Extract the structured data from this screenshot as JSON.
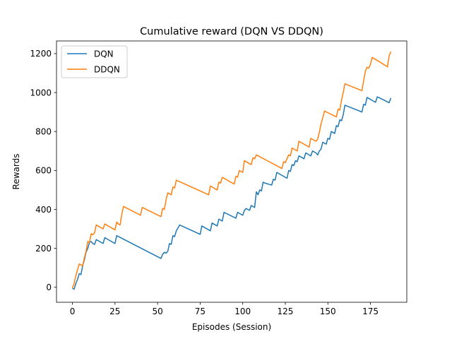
{
  "chart_data": {
    "type": "line",
    "title": "Cumulative reward (DQN VS DDQN)",
    "xlabel": "Episodes (Session)",
    "ylabel": "Rewards",
    "xlim": [
      -9.35,
      196.35
    ],
    "ylim": [
      -77,
      1265
    ],
    "xticks": [
      0,
      25,
      50,
      75,
      100,
      125,
      150,
      175
    ],
    "yticks": [
      0,
      200,
      400,
      600,
      800,
      1000,
      1200
    ],
    "grid": false,
    "legend_position": "top-left",
    "series": [
      {
        "name": "DQN",
        "color": "#1f77b4",
        "points": [
          [
            0,
            -5
          ],
          [
            1,
            -10
          ],
          [
            2,
            20
          ],
          [
            3,
            40
          ],
          [
            4,
            70
          ],
          [
            5,
            65
          ],
          [
            6,
            110
          ],
          [
            7,
            140
          ],
          [
            8,
            180
          ],
          [
            9,
            200
          ],
          [
            10,
            230
          ],
          [
            11,
            235
          ],
          [
            12,
            225
          ],
          [
            13,
            220
          ],
          [
            14,
            245
          ],
          [
            15,
            240
          ],
          [
            16,
            235
          ],
          [
            17,
            230
          ],
          [
            18,
            225
          ],
          [
            19,
            255
          ],
          [
            20,
            250
          ],
          [
            21,
            245
          ],
          [
            22,
            240
          ],
          [
            23,
            235
          ],
          [
            24,
            230
          ],
          [
            25,
            225
          ],
          [
            26,
            265
          ],
          [
            52,
            148
          ],
          [
            53,
            170
          ],
          [
            54,
            180
          ],
          [
            55,
            175
          ],
          [
            56,
            185
          ],
          [
            57,
            225
          ],
          [
            58,
            220
          ],
          [
            59,
            265
          ],
          [
            60,
            260
          ],
          [
            61,
            290
          ],
          [
            63,
            320
          ],
          [
            75,
            272
          ],
          [
            76,
            315
          ],
          [
            77,
            310
          ],
          [
            78,
            305
          ],
          [
            79,
            300
          ],
          [
            80,
            295
          ],
          [
            81,
            290
          ],
          [
            82,
            330
          ],
          [
            83,
            325
          ],
          [
            84,
            320
          ],
          [
            85,
            315
          ],
          [
            86,
            350
          ],
          [
            87,
            345
          ],
          [
            88,
            340
          ],
          [
            89,
            385
          ],
          [
            96,
            355
          ],
          [
            97,
            385
          ],
          [
            98,
            380
          ],
          [
            99,
            375
          ],
          [
            100,
            370
          ],
          [
            101,
            395
          ],
          [
            102,
            405
          ],
          [
            103,
            400
          ],
          [
            104,
            395
          ],
          [
            105,
            420
          ],
          [
            106,
            415
          ],
          [
            107,
            410
          ],
          [
            108,
            490
          ],
          [
            109,
            475
          ],
          [
            110,
            500
          ],
          [
            111,
            495
          ],
          [
            112,
            540
          ],
          [
            113,
            535
          ],
          [
            117,
            525
          ],
          [
            118,
            555
          ],
          [
            119,
            550
          ],
          [
            120,
            590
          ],
          [
            126,
            560
          ],
          [
            127,
            600
          ],
          [
            128,
            595
          ],
          [
            129,
            630
          ],
          [
            130,
            625
          ],
          [
            131,
            650
          ],
          [
            132,
            645
          ],
          [
            133,
            675
          ],
          [
            134,
            670
          ],
          [
            135,
            665
          ],
          [
            136,
            660
          ],
          [
            137,
            690
          ],
          [
            138,
            685
          ],
          [
            139,
            680
          ],
          [
            140,
            675
          ],
          [
            141,
            700
          ],
          [
            142,
            695
          ],
          [
            143,
            690
          ],
          [
            144,
            680
          ],
          [
            145,
            700
          ],
          [
            146,
            710
          ],
          [
            147,
            745
          ],
          [
            148,
            740
          ],
          [
            149,
            735
          ],
          [
            150,
            765
          ],
          [
            151,
            760
          ],
          [
            152,
            800
          ],
          [
            153,
            795
          ],
          [
            154,
            790
          ],
          [
            155,
            830
          ],
          [
            156,
            825
          ],
          [
            157,
            860
          ],
          [
            158,
            855
          ],
          [
            159,
            885
          ],
          [
            160,
            935
          ],
          [
            170,
            900
          ],
          [
            171,
            940
          ],
          [
            172,
            935
          ],
          [
            173,
            975
          ],
          [
            174,
            970
          ],
          [
            175,
            965
          ],
          [
            176,
            960
          ],
          [
            177,
            955
          ],
          [
            178,
            950
          ],
          [
            179,
            978
          ],
          [
            180,
            974
          ],
          [
            186,
            948
          ],
          [
            187,
            972
          ]
        ]
      },
      {
        "name": "DDQN",
        "color": "#ff7f0e",
        "points": [
          [
            0,
            -5
          ],
          [
            1,
            20
          ],
          [
            2,
            60
          ],
          [
            3,
            90
          ],
          [
            4,
            120
          ],
          [
            5,
            115
          ],
          [
            6,
            110
          ],
          [
            7,
            150
          ],
          [
            8,
            185
          ],
          [
            9,
            235
          ],
          [
            10,
            230
          ],
          [
            11,
            275
          ],
          [
            12,
            270
          ],
          [
            13,
            280
          ],
          [
            14,
            320
          ],
          [
            15,
            315
          ],
          [
            16,
            310
          ],
          [
            17,
            305
          ],
          [
            18,
            300
          ],
          [
            19,
            325
          ],
          [
            20,
            320
          ],
          [
            21,
            315
          ],
          [
            22,
            310
          ],
          [
            23,
            305
          ],
          [
            24,
            300
          ],
          [
            25,
            295
          ],
          [
            26,
            335
          ],
          [
            27,
            325
          ],
          [
            28,
            320
          ],
          [
            29,
            375
          ],
          [
            30,
            415
          ],
          [
            40,
            370
          ],
          [
            41,
            410
          ],
          [
            52,
            363
          ],
          [
            53,
            405
          ],
          [
            54,
            400
          ],
          [
            55,
            450
          ],
          [
            56,
            485
          ],
          [
            57,
            480
          ],
          [
            58,
            475
          ],
          [
            59,
            515
          ],
          [
            60,
            510
          ],
          [
            61,
            550
          ],
          [
            80,
            475
          ],
          [
            81,
            520
          ],
          [
            82,
            515
          ],
          [
            83,
            510
          ],
          [
            84,
            505
          ],
          [
            85,
            500
          ],
          [
            86,
            540
          ],
          [
            87,
            535
          ],
          [
            88,
            565
          ],
          [
            95,
            530
          ],
          [
            96,
            570
          ],
          [
            97,
            565
          ],
          [
            98,
            600
          ],
          [
            99,
            595
          ],
          [
            100,
            590
          ],
          [
            101,
            650
          ],
          [
            102,
            645
          ],
          [
            103,
            640
          ],
          [
            104,
            635
          ],
          [
            105,
            630
          ],
          [
            106,
            665
          ],
          [
            107,
            660
          ],
          [
            108,
            680
          ],
          [
            123,
            610
          ],
          [
            124,
            645
          ],
          [
            125,
            640
          ],
          [
            126,
            660
          ],
          [
            127,
            680
          ],
          [
            128,
            675
          ],
          [
            129,
            715
          ],
          [
            130,
            710
          ],
          [
            131,
            705
          ],
          [
            132,
            700
          ],
          [
            133,
            750
          ],
          [
            134,
            745
          ],
          [
            135,
            740
          ],
          [
            136,
            735
          ],
          [
            137,
            730
          ],
          [
            138,
            725
          ],
          [
            139,
            720
          ],
          [
            140,
            765
          ],
          [
            141,
            760
          ],
          [
            142,
            755
          ],
          [
            143,
            750
          ],
          [
            144,
            760
          ],
          [
            145,
            795
          ],
          [
            146,
            840
          ],
          [
            147,
            870
          ],
          [
            148,
            905
          ],
          [
            155,
            875
          ],
          [
            156,
            915
          ],
          [
            157,
            910
          ],
          [
            158,
            960
          ],
          [
            159,
            1000
          ],
          [
            160,
            1045
          ],
          [
            170,
            1010
          ],
          [
            171,
            1060
          ],
          [
            172,
            1110
          ],
          [
            173,
            1130
          ],
          [
            174,
            1125
          ],
          [
            175,
            1145
          ],
          [
            176,
            1180
          ],
          [
            177,
            1175
          ],
          [
            178,
            1170
          ],
          [
            179,
            1165
          ],
          [
            180,
            1160
          ],
          [
            185,
            1132
          ],
          [
            186,
            1190
          ],
          [
            187,
            1210
          ]
        ]
      }
    ]
  }
}
